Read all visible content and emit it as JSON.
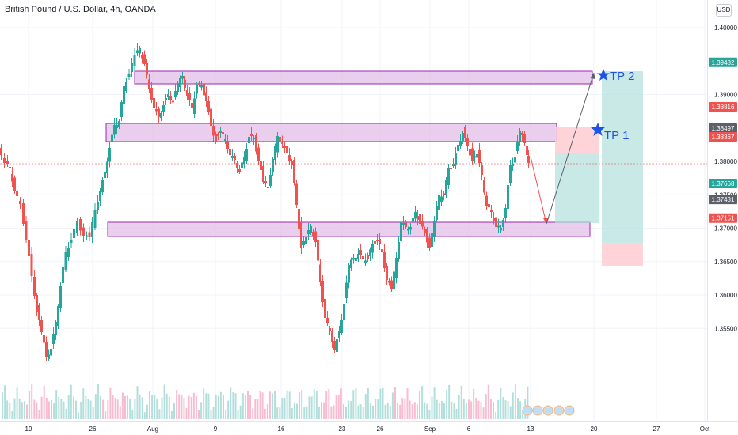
{
  "header": {
    "symbol_title": "British Pound / U.S. Dollar, 4h, OANDA",
    "currency": "USD"
  },
  "chart_data": {
    "type": "candlestick",
    "y_ticks": [
      "1.40000",
      "1.39000",
      "1.38000",
      "1.37500",
      "1.37000",
      "1.36500",
      "1.36000",
      "1.35500"
    ],
    "x_ticks": [
      "19",
      "26",
      "Aug",
      "9",
      "16",
      "23",
      "26",
      "Sep",
      "6",
      "13",
      "20",
      "27",
      "Oct"
    ],
    "price_badges": [
      {
        "value": "1.39482",
        "color": "#26a69a"
      },
      {
        "value": "1.38816",
        "color": "#ef5350"
      },
      {
        "value": "1.38497",
        "color": "#5d606b"
      },
      {
        "value": "1.38367",
        "color": "#ef5350"
      },
      {
        "value": "1.37668",
        "color": "#26a69a"
      },
      {
        "value": "1.37431",
        "color": "#5d606b"
      },
      {
        "value": "1.37151",
        "color": "#ef5350"
      }
    ],
    "annotations": {
      "tp1": "TP 1",
      "tp2": "TP 2"
    },
    "colors": {
      "up": "#26a69a",
      "down": "#ef5350",
      "zone_fill": "#e1bee7",
      "zone_stroke": "#9c27b0",
      "target_fill": "#b2dfdb",
      "stop_fill": "#ffcdd2",
      "star": "#1e53e5"
    }
  }
}
